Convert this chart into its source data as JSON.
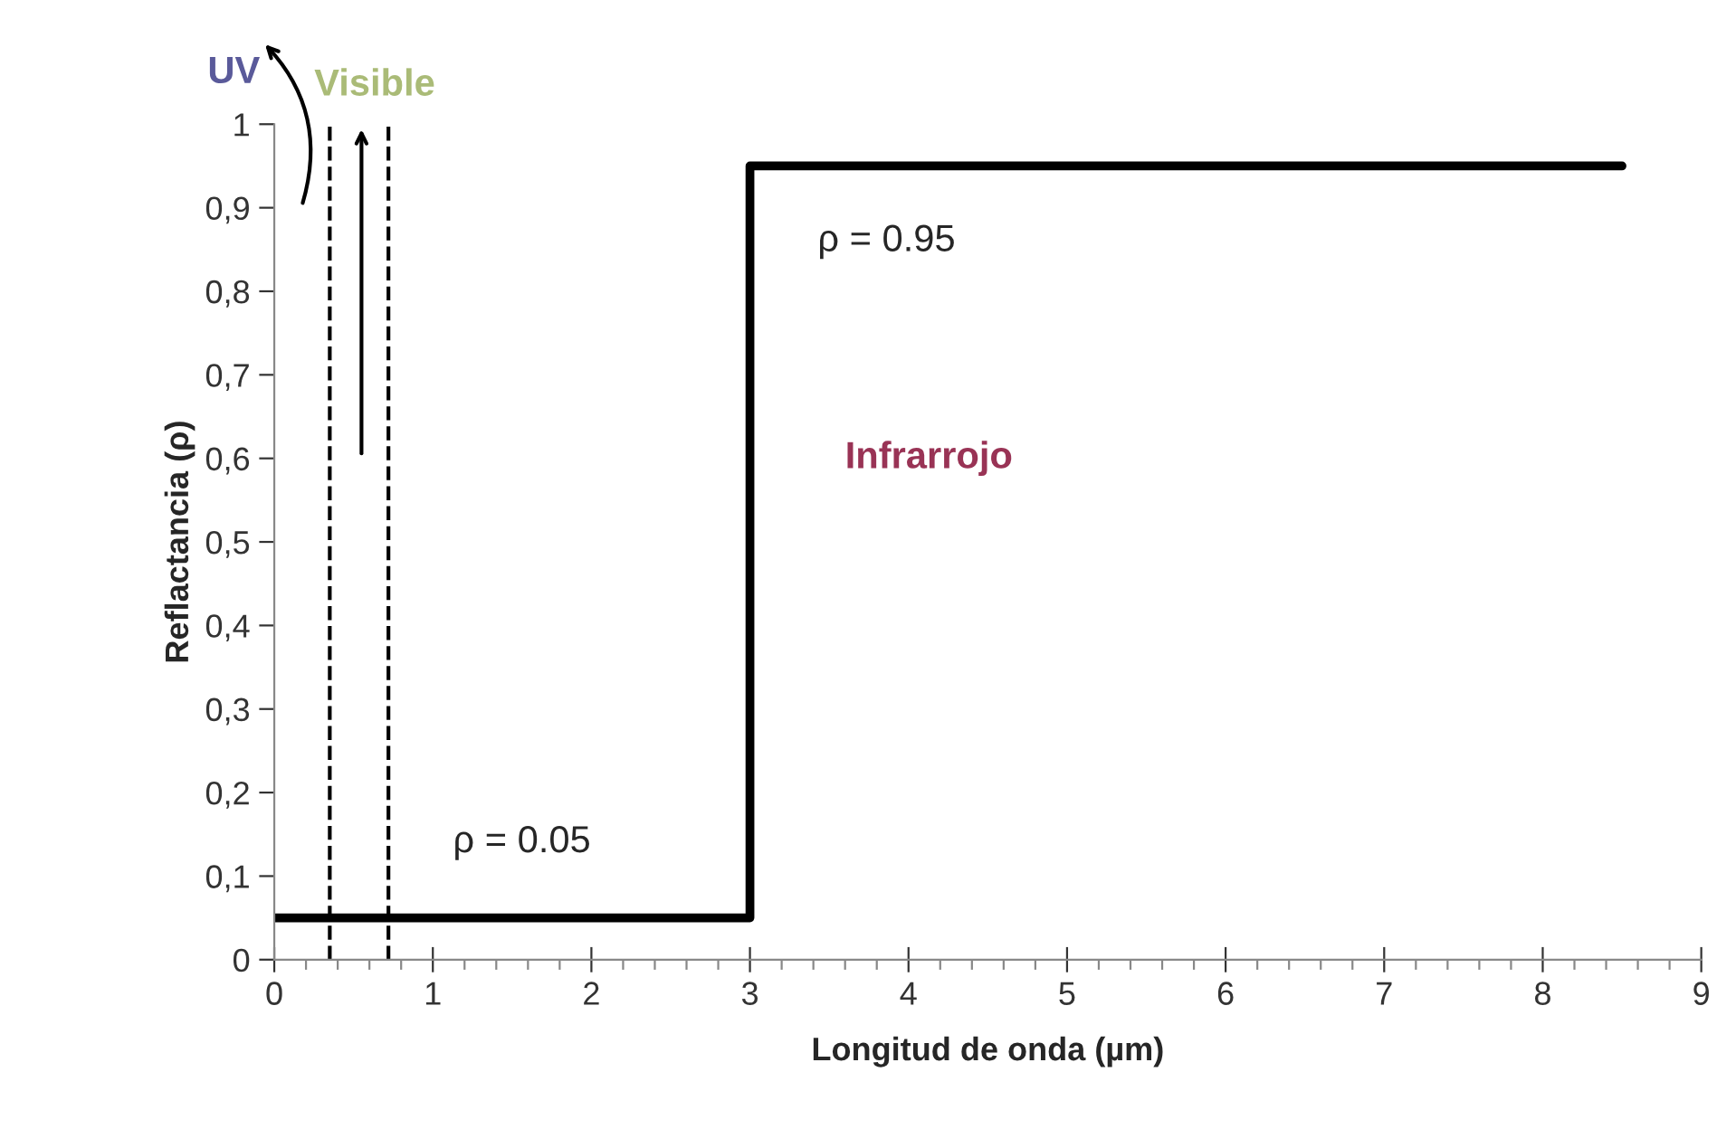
{
  "chart_data": {
    "type": "line",
    "xlabel": "Longitud de onda (µm)",
    "ylabel": "Reflactancia (ρ)",
    "series": [
      {
        "color": "#000000",
        "x": [
          0,
          3,
          3,
          8.5
        ],
        "values": [
          0.05,
          0.05,
          0.95,
          0.95
        ]
      }
    ],
    "xlim": [
      0,
      9
    ],
    "ylim": [
      0,
      1
    ],
    "xticks": [
      0,
      {
        "value": 0.2,
        "label": null
      },
      {
        "value": 0.4,
        "label": null
      },
      {
        "value": 0.6,
        "label": null
      },
      {
        "value": 0.8,
        "label": null
      },
      1,
      {
        "value": 1.2,
        "label": null
      },
      {
        "value": 1.4,
        "label": null
      },
      {
        "value": 1.6,
        "label": null
      },
      {
        "value": 1.8,
        "label": null
      },
      2,
      {
        "value": 2.2,
        "label": null
      },
      {
        "value": 2.4,
        "label": null
      },
      {
        "value": 2.6,
        "label": null
      },
      {
        "value": 2.8,
        "label": null
      },
      3,
      {
        "value": 3.2,
        "label": null
      },
      {
        "value": 3.4,
        "label": null
      },
      {
        "value": 3.6,
        "label": null
      },
      {
        "value": 3.8,
        "label": null
      },
      4,
      {
        "value": 4.2,
        "label": null
      },
      {
        "value": 4.4,
        "label": null
      },
      {
        "value": 4.6,
        "label": null
      },
      {
        "value": 4.8,
        "label": null
      },
      5,
      {
        "value": 5.2,
        "label": null
      },
      {
        "value": 5.4,
        "label": null
      },
      {
        "value": 5.6,
        "label": null
      },
      {
        "value": 5.8,
        "label": null
      },
      6,
      {
        "value": 6.2,
        "label": null
      },
      {
        "value": 6.4,
        "label": null
      },
      {
        "value": 6.6,
        "label": null
      },
      {
        "value": 6.8,
        "label": null
      },
      7,
      {
        "value": 7.2,
        "label": null
      },
      {
        "value": 7.4,
        "label": null
      },
      {
        "value": 7.6,
        "label": null
      },
      {
        "value": 7.8,
        "label": null
      },
      8,
      {
        "value": 8.2,
        "label": null
      },
      {
        "value": 8.4,
        "label": null
      },
      {
        "value": 8.6,
        "label": null
      },
      {
        "value": 8.8,
        "label": null
      },
      9
    ],
    "yticks": [
      0,
      {
        "value": 0.1,
        "label": "0,1"
      },
      {
        "value": 0.2,
        "label": "0,2"
      },
      {
        "value": 0.3,
        "label": "0,3"
      },
      {
        "value": 0.4,
        "label": "0,4"
      },
      {
        "value": 0.5,
        "label": "0,5"
      },
      {
        "value": 0.6,
        "label": "0,6"
      },
      {
        "value": 0.7,
        "label": "0,7"
      },
      {
        "value": 0.8,
        "label": "0,8"
      },
      {
        "value": 0.9,
        "label": "0,9"
      },
      1
    ],
    "ref_lines": [
      {
        "axis": "x",
        "value": 0.35,
        "color": "#000000",
        "line_style": "dashed"
      },
      {
        "axis": "x",
        "value": 0.72,
        "color": "#000000",
        "line_style": "dashed"
      }
    ],
    "annotations": [
      {
        "text": "ρ = 0.05",
        "x": 1,
        "y": 0.05
      },
      {
        "text": "ρ = 0.95",
        "x": 3.3,
        "y": 0.95
      },
      "UV",
      "Visible",
      "Infrarrojo"
    ],
    "grid": false,
    "legend": false,
    "marker": "none",
    "line_style": "solid"
  }
}
